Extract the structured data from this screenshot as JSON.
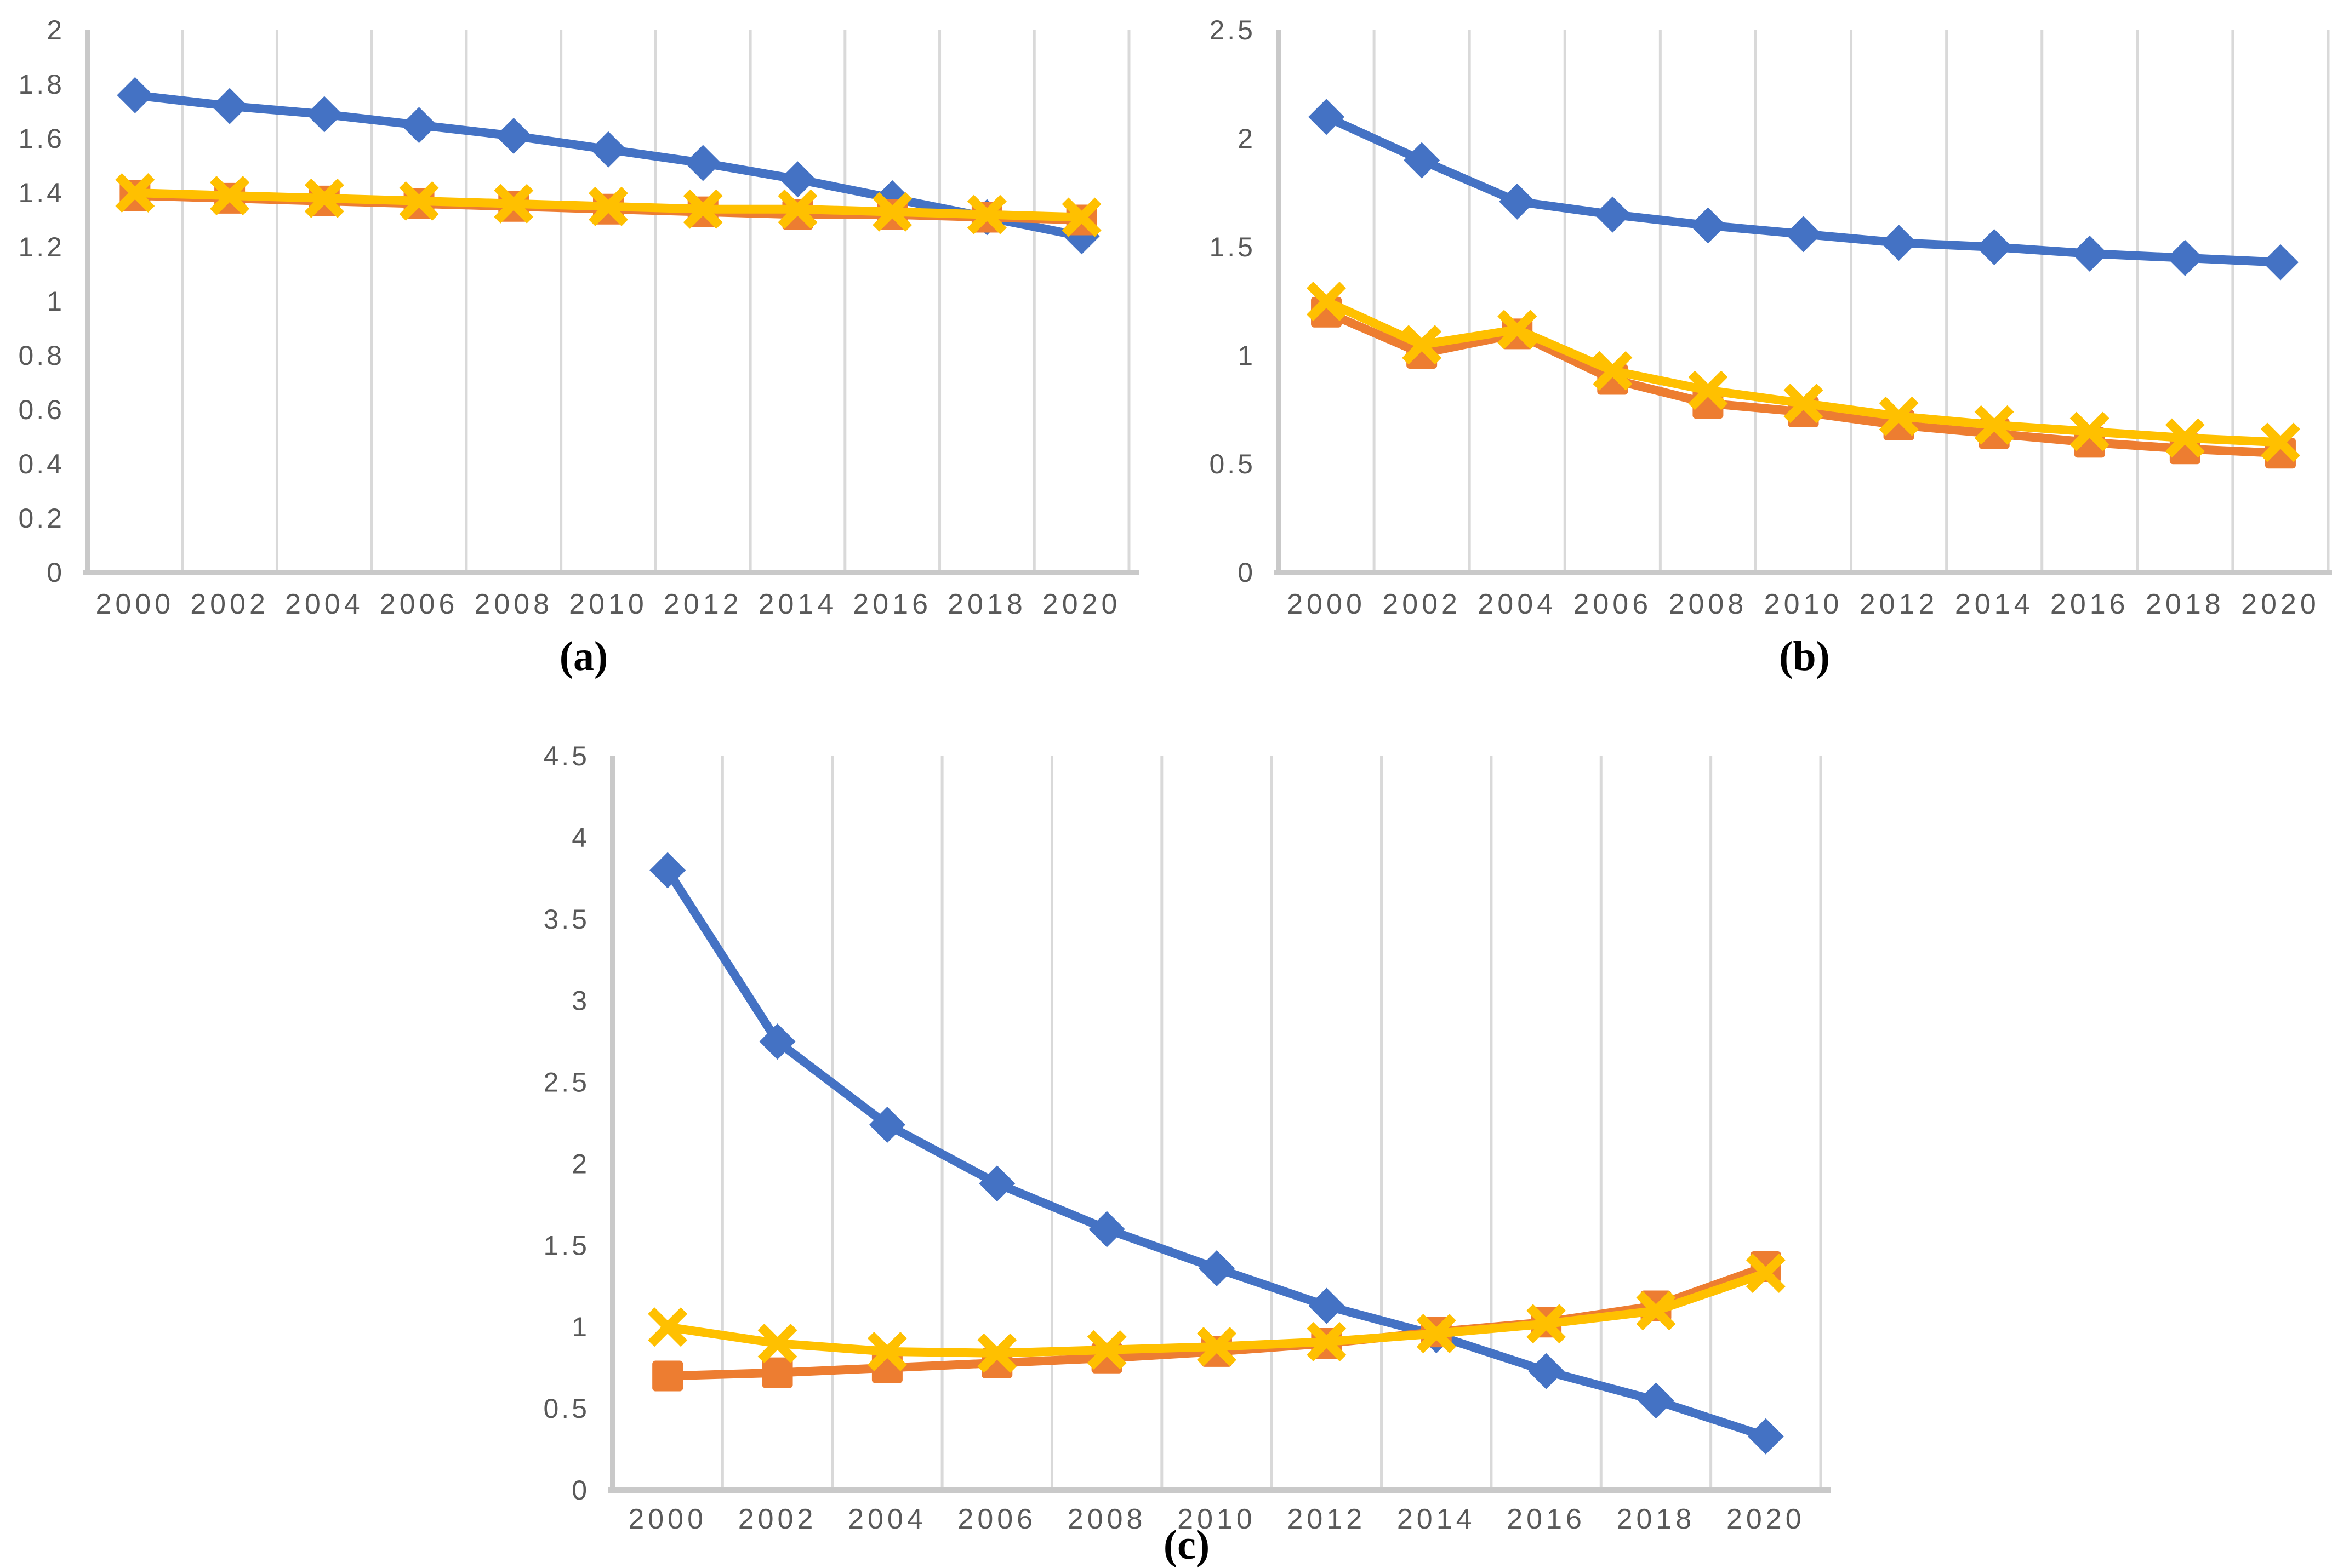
{
  "captions": {
    "a": "(a)",
    "b": "(b)",
    "c": "(c)"
  },
  "colors": {
    "series_blue": "#4472C4",
    "series_orange": "#ED7D31",
    "series_yellow": "#FFC000",
    "gridline": "#D9D9D9",
    "axis_line": "#C9C9C9",
    "tick_text": "#595959",
    "background": "#FFFFFF",
    "caption_text": "#000000"
  },
  "chart_data": [
    {
      "id": "a",
      "type": "line",
      "title": "",
      "xlabel": "",
      "ylabel": "",
      "legend": "none",
      "grid": "vertical-only",
      "category_placement": "between-gridlines",
      "categories": [
        "2000",
        "2002",
        "2004",
        "2006",
        "2008",
        "2010",
        "2012",
        "2014",
        "2016",
        "2018",
        "2020"
      ],
      "ylim": [
        0,
        2
      ],
      "yticks": [
        {
          "value": 0,
          "label": "0"
        },
        {
          "value": 0.2,
          "label": "0.2"
        },
        {
          "value": 0.4,
          "label": "0.4"
        },
        {
          "value": 0.6,
          "label": "0.6"
        },
        {
          "value": 0.8,
          "label": "0.8"
        },
        {
          "value": 1,
          "label": "1"
        },
        {
          "value": 1.2,
          "label": "1.2"
        },
        {
          "value": 1.4,
          "label": "1.4"
        },
        {
          "value": 1.6,
          "label": "1.6"
        },
        {
          "value": 1.8,
          "label": "1.8"
        },
        {
          "value": 2,
          "label": "2"
        }
      ],
      "series": [
        {
          "name": "blue-diamond-series",
          "marker": "diamond",
          "color": "#4472C4",
          "values": [
            1.76,
            1.72,
            1.69,
            1.65,
            1.61,
            1.56,
            1.51,
            1.45,
            1.38,
            1.31,
            1.24
          ]
        },
        {
          "name": "orange-square-series",
          "marker": "square",
          "color": "#ED7D31",
          "values": [
            1.39,
            1.38,
            1.37,
            1.36,
            1.35,
            1.34,
            1.33,
            1.32,
            1.32,
            1.31,
            1.3
          ]
        },
        {
          "name": "yellow-x-series",
          "marker": "x",
          "color": "#FFC000",
          "values": [
            1.4,
            1.39,
            1.38,
            1.37,
            1.36,
            1.35,
            1.34,
            1.34,
            1.33,
            1.32,
            1.31
          ]
        }
      ]
    },
    {
      "id": "b",
      "type": "line",
      "title": "",
      "xlabel": "",
      "ylabel": "",
      "legend": "none",
      "grid": "vertical-only",
      "category_placement": "between-gridlines",
      "categories": [
        "2000",
        "2002",
        "2004",
        "2006",
        "2008",
        "2010",
        "2012",
        "2014",
        "2016",
        "2018",
        "2020"
      ],
      "ylim": [
        0,
        2.5
      ],
      "yticks": [
        {
          "value": 0,
          "label": "0"
        },
        {
          "value": 0.5,
          "label": "0.5"
        },
        {
          "value": 1,
          "label": "1"
        },
        {
          "value": 1.5,
          "label": "1.5"
        },
        {
          "value": 2,
          "label": "2"
        },
        {
          "value": 2.5,
          "label": "2.5"
        }
      ],
      "series": [
        {
          "name": "blue-diamond-series",
          "marker": "diamond",
          "color": "#4472C4",
          "values": [
            2.1,
            1.9,
            1.71,
            1.65,
            1.6,
            1.56,
            1.52,
            1.5,
            1.47,
            1.45,
            1.43
          ]
        },
        {
          "name": "orange-square-series",
          "marker": "square",
          "color": "#ED7D31",
          "values": [
            1.2,
            1.01,
            1.1,
            0.89,
            0.78,
            0.74,
            0.68,
            0.64,
            0.6,
            0.57,
            0.55
          ]
        },
        {
          "name": "yellow-x-series",
          "marker": "x",
          "color": "#FFC000",
          "values": [
            1.25,
            1.05,
            1.12,
            0.93,
            0.84,
            0.78,
            0.72,
            0.68,
            0.65,
            0.62,
            0.6
          ]
        }
      ]
    },
    {
      "id": "c",
      "type": "line",
      "title": "",
      "xlabel": "",
      "ylabel": "",
      "legend": "none",
      "grid": "vertical-only",
      "category_placement": "between-gridlines",
      "categories": [
        "2000",
        "2002",
        "2004",
        "2006",
        "2008",
        "2010",
        "2012",
        "2014",
        "2016",
        "2018",
        "2020"
      ],
      "ylim": [
        0,
        4.5
      ],
      "yticks": [
        {
          "value": 0,
          "label": "0"
        },
        {
          "value": 0.5,
          "label": "0.5"
        },
        {
          "value": 1,
          "label": "1"
        },
        {
          "value": 1.5,
          "label": "1.5"
        },
        {
          "value": 2,
          "label": "2"
        },
        {
          "value": 2.5,
          "label": "2.5"
        },
        {
          "value": 3,
          "label": "3"
        },
        {
          "value": 3.5,
          "label": "3.5"
        },
        {
          "value": 4,
          "label": "4"
        },
        {
          "value": 4.5,
          "label": "4.5"
        }
      ],
      "series": [
        {
          "name": "blue-diamond-series",
          "marker": "diamond",
          "color": "#4472C4",
          "values": [
            3.8,
            2.75,
            2.24,
            1.88,
            1.6,
            1.36,
            1.13,
            0.95,
            0.73,
            0.55,
            0.33
          ]
        },
        {
          "name": "orange-square-series",
          "marker": "square",
          "color": "#ED7D31",
          "values": [
            0.7,
            0.72,
            0.75,
            0.78,
            0.81,
            0.85,
            0.9,
            0.97,
            1.03,
            1.13,
            1.37
          ]
        },
        {
          "name": "yellow-x-series",
          "marker": "x",
          "color": "#FFC000",
          "values": [
            1.0,
            0.9,
            0.85,
            0.84,
            0.86,
            0.88,
            0.91,
            0.96,
            1.02,
            1.1,
            1.33
          ]
        }
      ]
    }
  ]
}
